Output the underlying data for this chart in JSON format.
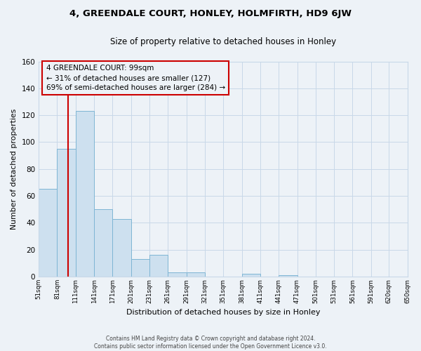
{
  "title": "4, GREENDALE COURT, HONLEY, HOLMFIRTH, HD9 6JW",
  "subtitle": "Size of property relative to detached houses in Honley",
  "xlabel": "Distribution of detached houses by size in Honley",
  "ylabel": "Number of detached properties",
  "bar_edges": [
    51,
    81,
    111,
    141,
    171,
    201,
    231,
    261,
    291,
    321,
    351,
    381,
    411,
    441,
    471,
    501,
    531,
    561,
    591,
    620,
    650
  ],
  "bar_heights": [
    65,
    95,
    123,
    50,
    43,
    13,
    16,
    3,
    3,
    0,
    0,
    2,
    0,
    1,
    0,
    0,
    0,
    0,
    0,
    0
  ],
  "bar_color": "#cde0ef",
  "bar_edgecolor": "#7eb5d4",
  "vline_x": 99,
  "vline_color": "#cc0000",
  "annotation_line1": "4 GREENDALE COURT: 99sqm",
  "annotation_line2": "← 31% of detached houses are smaller (127)",
  "annotation_line3": "69% of semi-detached houses are larger (284) →",
  "ylim": [
    0,
    160
  ],
  "yticks": [
    0,
    20,
    40,
    60,
    80,
    100,
    120,
    140,
    160
  ],
  "tick_labels": [
    "51sqm",
    "81sqm",
    "111sqm",
    "141sqm",
    "171sqm",
    "201sqm",
    "231sqm",
    "261sqm",
    "291sqm",
    "321sqm",
    "351sqm",
    "381sqm",
    "411sqm",
    "441sqm",
    "471sqm",
    "501sqm",
    "531sqm",
    "561sqm",
    "591sqm",
    "620sqm",
    "650sqm"
  ],
  "footer_line1": "Contains HM Land Registry data © Crown copyright and database right 2024.",
  "footer_line2": "Contains public sector information licensed under the Open Government Licence v3.0.",
  "bg_color": "#edf2f7",
  "grid_color": "#c8d8e8"
}
